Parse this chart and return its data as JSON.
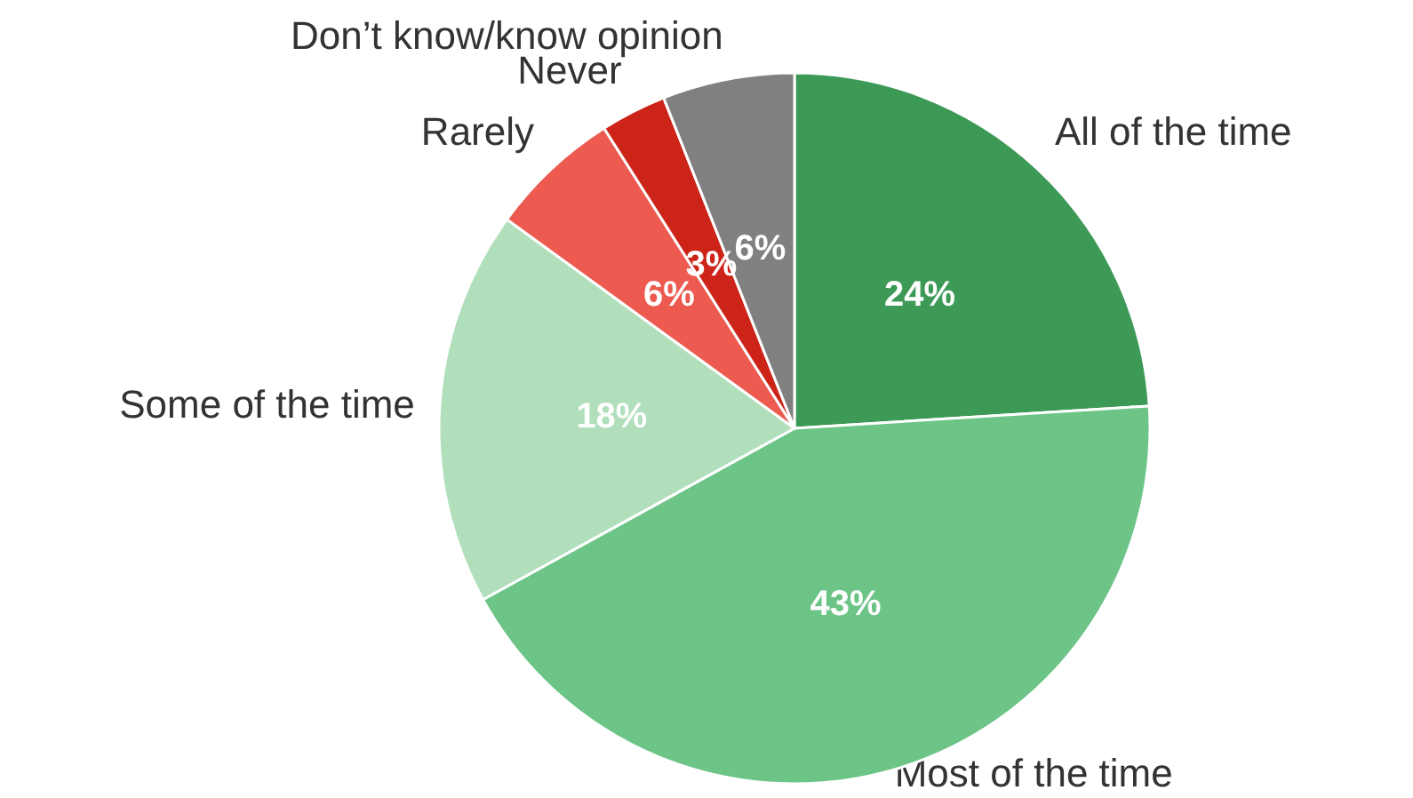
{
  "chart_data": {
    "type": "pie",
    "categories": [
      "All of the time",
      "Most of the time",
      "Some of the time",
      "Rarely",
      "Never",
      "Don’t know/know opinion"
    ],
    "values": [
      24,
      43,
      18,
      6,
      3,
      6
    ],
    "colors": [
      "#3d9956",
      "#6cc486",
      "#b1dfbc",
      "#ec5a50",
      "#cc2418",
      "#808080"
    ],
    "value_labels": [
      "24%",
      "43%",
      "18%",
      "6%",
      "3%",
      "6%"
    ],
    "legend": false
  }
}
